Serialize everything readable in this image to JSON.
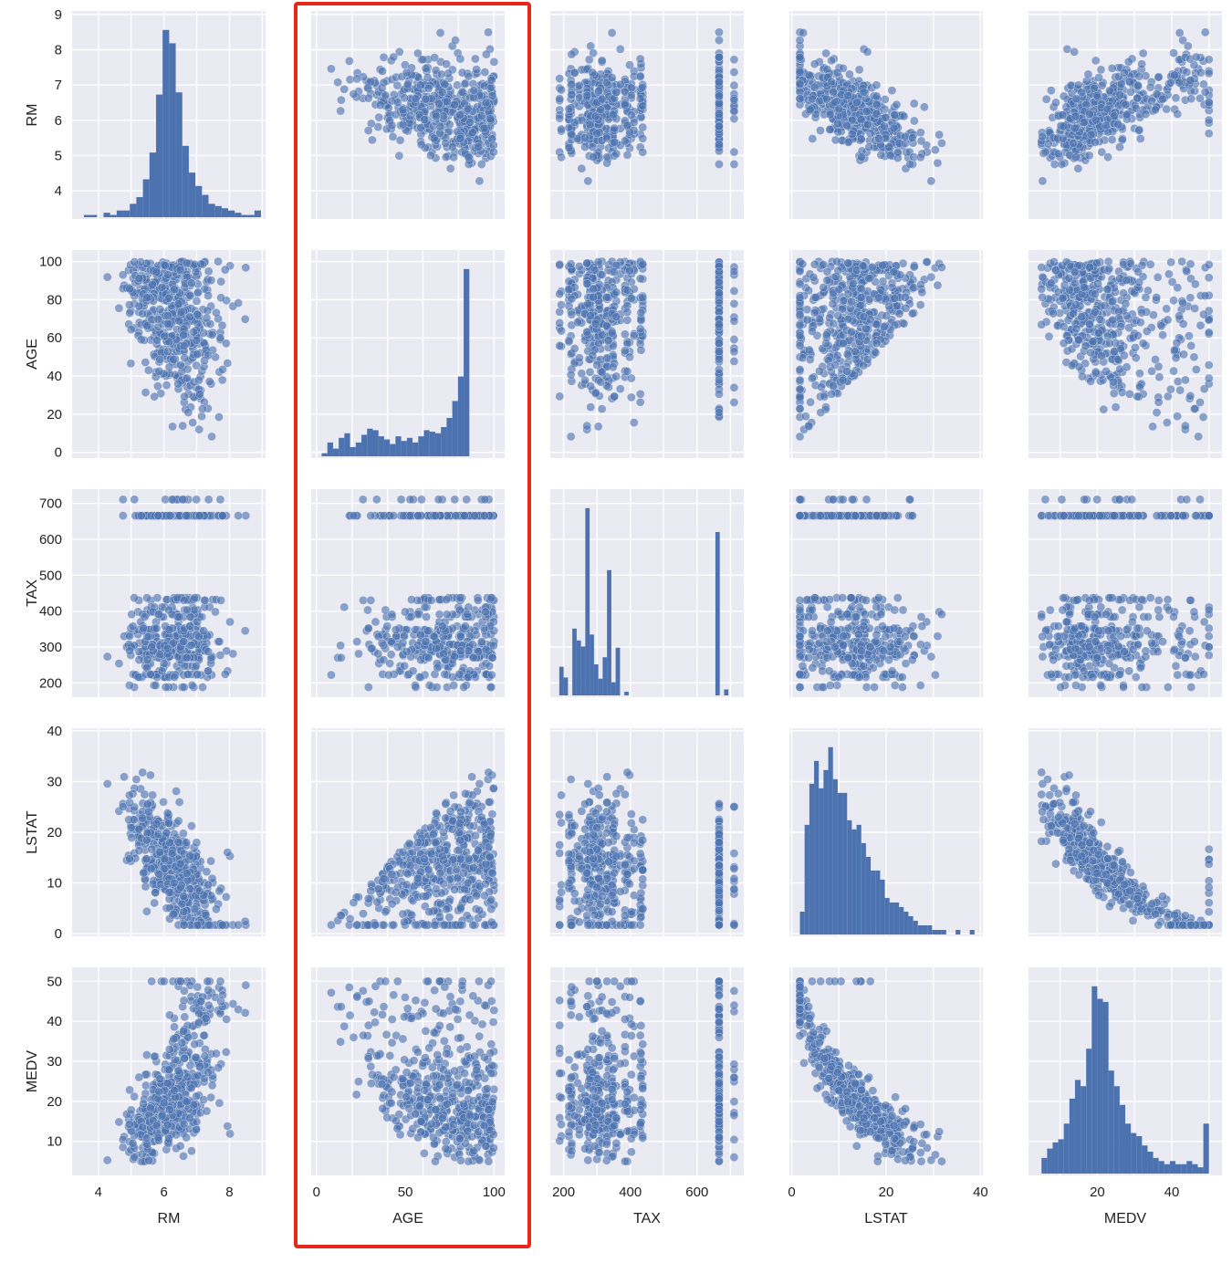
{
  "chart_data": {
    "type": "scatter",
    "layout": "pair-plot matrix (5x5); diagonal panels are histograms, off-diagonal panels are scatter plots",
    "variables": [
      "RM",
      "AGE",
      "TAX",
      "LSTAT",
      "MEDV"
    ],
    "axes": {
      "RM": {
        "label": "RM",
        "range": [
          3.2,
          9.1
        ],
        "ticks": [
          4,
          5,
          6,
          7,
          8,
          9
        ]
      },
      "AGE": {
        "label": "AGE",
        "range": [
          -3,
          106
        ],
        "ticks": [
          0,
          20,
          40,
          60,
          80,
          100
        ]
      },
      "TAX": {
        "label": "TAX",
        "range": [
          160,
          740
        ],
        "ticks": [
          200,
          300,
          400,
          500,
          600,
          700
        ]
      },
      "LSTAT": {
        "label": "LSTAT",
        "range": [
          -0.5,
          40.5
        ],
        "ticks": [
          0,
          10,
          20,
          30,
          40
        ]
      },
      "MEDV": {
        "label": "MEDV",
        "range": [
          1.5,
          53.5
        ],
        "ticks": [
          10,
          20,
          30,
          40,
          50
        ]
      }
    },
    "x_tick_labels": {
      "RM": [
        4,
        6,
        8
      ],
      "AGE": [
        0,
        50,
        100
      ],
      "TAX": [
        200,
        400,
        600
      ],
      "LSTAT": [
        0,
        20,
        40
      ],
      "MEDV": [
        20,
        40
      ]
    },
    "histograms": {
      "RM": {
        "bin_start": 3.56,
        "bin_width": 0.2,
        "counts": [
          1,
          1,
          0,
          2,
          1,
          3,
          3,
          6,
          9,
          17,
          29,
          55,
          84,
          78,
          56,
          32,
          20,
          14,
          10,
          6,
          5,
          4,
          3,
          2,
          1,
          1,
          3,
          0
        ]
      },
      "AGE": {
        "bin_start": 2.9,
        "bin_width": 3.2,
        "counts": [
          2,
          9,
          5,
          12,
          15,
          6,
          9,
          14,
          18,
          17,
          13,
          11,
          8,
          13,
          10,
          12,
          9,
          13,
          17,
          16,
          15,
          19,
          25,
          36,
          52,
          122
        ]
      },
      "TAX": {
        "bin_start": 187,
        "bin_width": 13,
        "counts": [
          24,
          15,
          0,
          56,
          46,
          41,
          157,
          51,
          26,
          14,
          32,
          105,
          11,
          40,
          0,
          3,
          0,
          0,
          0,
          0,
          0,
          0,
          0,
          0,
          0,
          0,
          0,
          0,
          0,
          0,
          0,
          0,
          0,
          0,
          0,
          0,
          137,
          0,
          5
        ]
      },
      "LSTAT": {
        "bin_start": 1.73,
        "bin_width": 1.0,
        "counts": [
          5,
          24,
          33,
          38,
          32,
          36,
          41,
          34,
          31,
          31,
          25,
          23,
          24,
          20,
          17,
          14,
          14,
          12,
          8,
          7,
          7,
          6,
          5,
          4,
          3,
          2,
          2,
          2,
          1,
          1,
          1,
          0,
          0,
          1,
          0,
          0,
          1
        ]
      },
      "MEDV": {
        "bin_start": 5.0,
        "bin_width": 1.5,
        "counts": [
          5,
          8,
          10,
          11,
          16,
          24,
          30,
          28,
          40,
          60,
          56,
          55,
          33,
          28,
          22,
          16,
          13,
          12,
          9,
          7,
          5,
          4,
          3,
          4,
          3,
          3,
          4,
          3,
          2,
          16
        ]
      }
    },
    "relationships": {
      "RM-LSTAT": "negative",
      "RM-MEDV": "positive",
      "LSTAT-MEDV": "negative, curved",
      "AGE-LSTAT": "positive",
      "AGE-MEDV": "negative",
      "TAX": "clusters near 187-460 and a dense column near 666-711"
    },
    "highlight": {
      "column": "AGE",
      "color": "#e8271b"
    },
    "colors": {
      "marker": "#4c72b0",
      "bar": "#4c72b0",
      "panel_background": "#eaeaf2",
      "grid": "#ffffff",
      "highlight_box": "#e8271b"
    },
    "grid": true
  }
}
